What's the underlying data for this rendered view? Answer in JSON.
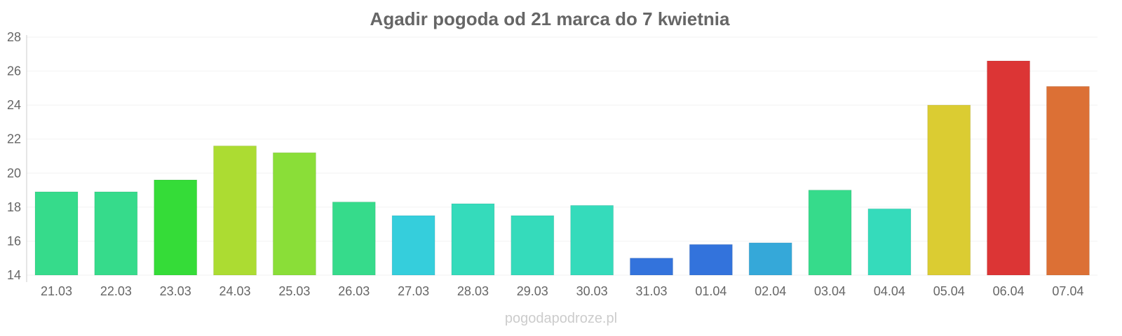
{
  "chart_data": {
    "type": "bar",
    "title": "Agadir pogoda od 21 marca do 7 kwietnia",
    "xlabel": "",
    "ylabel": "",
    "ylim": [
      14,
      28
    ],
    "yticks": [
      "14",
      "16",
      "18",
      "20",
      "22",
      "24",
      "26",
      "28"
    ],
    "grid": true,
    "categories": [
      "21.03",
      "22.03",
      "23.03",
      "24.03",
      "25.03",
      "26.03",
      "27.03",
      "28.03",
      "29.03",
      "30.03",
      "31.03",
      "01.04",
      "02.04",
      "03.04",
      "04.04",
      "05.04",
      "06.04",
      "07.04"
    ],
    "values": [
      18.9,
      18.9,
      19.6,
      21.6,
      21.2,
      18.3,
      17.5,
      18.2,
      17.5,
      18.1,
      15.0,
      15.8,
      15.9,
      19.0,
      17.9,
      24.0,
      26.6,
      25.1
    ],
    "colors": [
      "#36db8b",
      "#36db8b",
      "#35dc38",
      "#acdc32",
      "#8ade38",
      "#36db8b",
      "#35cedc",
      "#35dbbb",
      "#35dbbb",
      "#35dbbb",
      "#3373dc",
      "#3373dc",
      "#35a8d9",
      "#36db8b",
      "#35dbbb",
      "#dbcc32",
      "#dc3535",
      "#dc7035"
    ]
  },
  "watermark": "pogodapodroze.pl"
}
